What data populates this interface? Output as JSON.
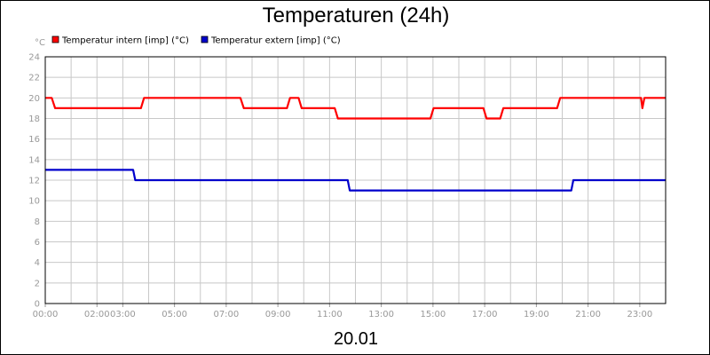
{
  "chart_data": {
    "type": "line",
    "title": "Temperaturen (24h)",
    "ylabel": "°C",
    "xlabel": "20.01",
    "ylim": [
      0,
      24
    ],
    "y_ticks": [
      0,
      2,
      4,
      6,
      8,
      10,
      12,
      14,
      16,
      18,
      20,
      22,
      24
    ],
    "xlim_hours": [
      0,
      24
    ],
    "x_ticks": [
      {
        "h": 0,
        "label": "00:00"
      },
      {
        "h": 2,
        "label": "02:00"
      },
      {
        "h": 3,
        "label": "03:00"
      },
      {
        "h": 5,
        "label": "05:00"
      },
      {
        "h": 7,
        "label": "07:00"
      },
      {
        "h": 9,
        "label": "09:00"
      },
      {
        "h": 11,
        "label": "11:00"
      },
      {
        "h": 13,
        "label": "13:00"
      },
      {
        "h": 15,
        "label": "15:00"
      },
      {
        "h": 17,
        "label": "17:00"
      },
      {
        "h": 19,
        "label": "19:00"
      },
      {
        "h": 21,
        "label": "21:00"
      },
      {
        "h": 23,
        "label": "23:00"
      }
    ],
    "grid": true,
    "legend_position": "top-left",
    "series": [
      {
        "name": "Temperatur intern [imp] (°C)",
        "color": "#ff0000",
        "points": [
          [
            0.0,
            20
          ],
          [
            0.25,
            20
          ],
          [
            0.38,
            19
          ],
          [
            3.7,
            19
          ],
          [
            3.82,
            20
          ],
          [
            7.55,
            20
          ],
          [
            7.68,
            19
          ],
          [
            9.35,
            19
          ],
          [
            9.47,
            20
          ],
          [
            9.8,
            20
          ],
          [
            9.92,
            19
          ],
          [
            11.2,
            19
          ],
          [
            11.32,
            18
          ],
          [
            14.9,
            18
          ],
          [
            15.02,
            19
          ],
          [
            16.95,
            19
          ],
          [
            17.07,
            18
          ],
          [
            17.6,
            18
          ],
          [
            17.72,
            19
          ],
          [
            19.8,
            19
          ],
          [
            19.92,
            20
          ],
          [
            23.05,
            20
          ],
          [
            23.1,
            19
          ],
          [
            23.18,
            20
          ],
          [
            24.0,
            20
          ]
        ]
      },
      {
        "name": "Temperatur extern [imp] (°C)",
        "color": "#0000cc",
        "points": [
          [
            0.0,
            13
          ],
          [
            3.4,
            13
          ],
          [
            3.48,
            12
          ],
          [
            11.7,
            12
          ],
          [
            11.78,
            11
          ],
          [
            20.35,
            11
          ],
          [
            20.43,
            12
          ],
          [
            24.0,
            12
          ]
        ]
      }
    ]
  }
}
